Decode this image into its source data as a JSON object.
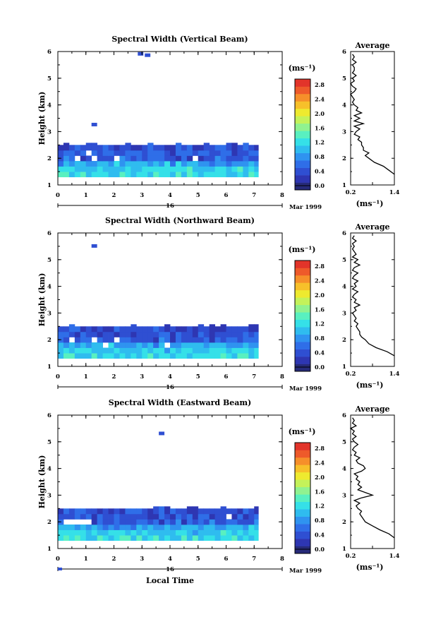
{
  "chart_data": [
    {
      "type": "heatmap",
      "title": "Spectral Width (Vertical Beam)",
      "ylabel": "Height (km)",
      "xticks": [
        "0",
        "1",
        "2",
        "3",
        "4",
        "5",
        "6",
        "7",
        "8"
      ],
      "yticks": [
        "1",
        "2",
        "3",
        "4",
        "5",
        "6"
      ],
      "xlim": [
        0,
        8
      ],
      "ylim": [
        1,
        6
      ],
      "date_day": "16",
      "date_label": "Mar 1999",
      "colorbar": {
        "unit": "(ms⁻¹)",
        "ticks": [
          "0.0",
          "0.4",
          "0.8",
          "1.2",
          "1.6",
          "2.0",
          "2.4",
          "2.8"
        ],
        "range": [
          0,
          3.0
        ]
      },
      "grid": {
        "x_end": 7.15,
        "heights_km": [
          1.4,
          1.6,
          1.8,
          2.0,
          2.2,
          2.4
        ],
        "dominant_width": [
          1.3,
          1.2,
          1.0,
          0.6,
          0.6,
          0.5
        ]
      },
      "gaps": [
        [
          0.6,
          2.0
        ],
        [
          1.0,
          2.2
        ],
        [
          1.2,
          2.0
        ],
        [
          1.7,
          2.0
        ],
        [
          2.0,
          2.0
        ],
        [
          4.5,
          2.0
        ],
        [
          4.8,
          2.0
        ]
      ],
      "isolated": [
        [
          2.85,
          5.9,
          0.6
        ],
        [
          3.1,
          5.85,
          0.6
        ],
        [
          1.2,
          3.25,
          0.6
        ]
      ],
      "average": {
        "title": "Average",
        "xticks": [
          "0.2",
          "1.4"
        ],
        "xlim": [
          0.2,
          1.4
        ],
        "unit": "(ms⁻¹)",
        "heights": [
          1.4,
          1.55,
          1.7,
          1.85,
          2.0,
          2.1,
          2.2,
          2.3,
          2.4,
          2.5,
          2.6,
          2.7,
          2.8,
          2.9,
          3.0,
          3.1,
          3.2,
          3.3,
          3.4,
          3.5,
          3.6,
          3.7,
          3.8,
          3.9,
          4.0,
          4.1,
          4.2,
          4.3,
          4.4,
          4.5,
          4.6,
          4.7,
          4.8,
          4.9,
          5.0,
          5.1,
          5.2,
          5.3,
          5.4,
          5.5,
          5.6,
          5.7,
          5.8,
          5.9
        ],
        "values": [
          1.4,
          1.25,
          1.1,
          0.85,
          0.7,
          0.6,
          0.7,
          0.55,
          0.55,
          0.5,
          0.5,
          0.4,
          0.45,
          0.3,
          0.35,
          0.45,
          0.3,
          0.55,
          0.3,
          0.45,
          0.3,
          0.5,
          0.35,
          0.4,
          0.3,
          0.25,
          0.3,
          0.25,
          0.2,
          0.3,
          0.35,
          0.25,
          0.2,
          0.3,
          0.25,
          0.35,
          0.25,
          0.3,
          0.3,
          0.25,
          0.35,
          0.25,
          0.3,
          0.25
        ]
      }
    },
    {
      "type": "heatmap",
      "title": "Spectral Width (Northward Beam)",
      "ylabel": "Height (km)",
      "xticks": [
        "0",
        "1",
        "2",
        "3",
        "4",
        "5",
        "6",
        "7",
        "8"
      ],
      "yticks": [
        "1",
        "2",
        "3",
        "4",
        "5",
        "6"
      ],
      "xlim": [
        0,
        8
      ],
      "ylim": [
        1,
        6
      ],
      "date_day": "16",
      "date_label": "Mar 1999",
      "colorbar": {
        "unit": "(ms⁻¹)",
        "ticks": [
          "0.0",
          "0.4",
          "0.8",
          "1.2",
          "1.6",
          "2.0",
          "2.4",
          "2.8"
        ],
        "range": [
          0,
          3.0
        ]
      },
      "grid": {
        "x_end": 7.15,
        "heights_km": [
          1.4,
          1.6,
          1.8,
          2.0,
          2.2,
          2.4
        ],
        "dominant_width": [
          1.3,
          1.2,
          1.0,
          0.6,
          0.5,
          0.45
        ]
      },
      "gaps": [
        [
          0.4,
          2.0
        ],
        [
          1.2,
          2.0
        ],
        [
          2.0,
          2.0
        ],
        [
          3.8,
          1.8
        ],
        [
          4.5,
          2.2
        ],
        [
          6.1,
          1.8
        ],
        [
          6.1,
          2.0
        ],
        [
          1.6,
          1.8
        ]
      ],
      "isolated": [
        [
          1.2,
          5.5,
          0.6
        ]
      ],
      "average": {
        "title": "Average",
        "xticks": [
          "0.2",
          "1.4"
        ],
        "xlim": [
          0.2,
          1.4
        ],
        "unit": "(ms⁻¹)",
        "heights": [
          1.4,
          1.55,
          1.7,
          1.85,
          2.0,
          2.1,
          2.2,
          2.3,
          2.4,
          2.5,
          2.6,
          2.7,
          2.8,
          2.9,
          3.0,
          3.1,
          3.2,
          3.3,
          3.4,
          3.5,
          3.6,
          3.7,
          3.8,
          3.9,
          4.0,
          4.1,
          4.2,
          4.3,
          4.4,
          4.5,
          4.6,
          4.7,
          4.8,
          4.9,
          5.0,
          5.1,
          5.2,
          5.3,
          5.4,
          5.5,
          5.6,
          5.7,
          5.8,
          5.9
        ],
        "values": [
          1.4,
          1.2,
          0.9,
          0.7,
          0.6,
          0.5,
          0.45,
          0.45,
          0.4,
          0.35,
          0.4,
          0.3,
          0.35,
          0.3,
          0.25,
          0.35,
          0.3,
          0.45,
          0.3,
          0.35,
          0.25,
          0.3,
          0.4,
          0.25,
          0.35,
          0.3,
          0.4,
          0.25,
          0.3,
          0.4,
          0.25,
          0.3,
          0.45,
          0.3,
          0.4,
          0.25,
          0.35,
          0.3,
          0.25,
          0.3,
          0.25,
          0.35,
          0.25,
          0.3
        ]
      }
    },
    {
      "type": "heatmap",
      "title": "Spectral Width (Eastward Beam)",
      "ylabel": "Height (km)",
      "xlabel": "Local Time",
      "xticks": [
        "0",
        "1",
        "2",
        "3",
        "4",
        "5",
        "6",
        "7",
        "8"
      ],
      "yticks": [
        "1",
        "2",
        "3",
        "4",
        "5",
        "6"
      ],
      "xlim": [
        0,
        8
      ],
      "ylim": [
        1,
        6
      ],
      "date_day": "16",
      "date_label": "Mar 1999",
      "colorbar": {
        "unit": "(ms⁻¹)",
        "ticks": [
          "0.0",
          "0.4",
          "0.8",
          "1.2",
          "1.6",
          "2.0",
          "2.4",
          "2.8"
        ],
        "range": [
          0,
          3.0
        ]
      },
      "grid": {
        "x_end": 7.15,
        "heights_km": [
          1.4,
          1.6,
          1.8,
          2.0,
          2.2,
          2.4
        ],
        "dominant_width": [
          1.3,
          1.2,
          1.0,
          0.6,
          0.55,
          0.5
        ]
      },
      "gaps": [
        [
          0.2,
          2.0
        ],
        [
          0.4,
          2.0
        ],
        [
          0.6,
          2.0
        ],
        [
          0.8,
          2.0
        ],
        [
          1.0,
          2.0
        ],
        [
          6.0,
          2.2
        ]
      ],
      "isolated": [
        [
          3.6,
          5.3,
          0.6
        ]
      ],
      "average": {
        "title": "Average",
        "xticks": [
          "0.2",
          "1.4"
        ],
        "xlim": [
          0.2,
          1.4
        ],
        "unit": "(ms⁻¹)",
        "heights": [
          1.4,
          1.55,
          1.7,
          1.85,
          2.0,
          2.1,
          2.2,
          2.3,
          2.4,
          2.5,
          2.6,
          2.7,
          2.8,
          2.9,
          3.0,
          3.1,
          3.2,
          3.3,
          3.4,
          3.5,
          3.6,
          3.7,
          3.8,
          3.9,
          4.0,
          4.1,
          4.2,
          4.3,
          4.4,
          4.5,
          4.6,
          4.7,
          4.8,
          4.9,
          5.0,
          5.1,
          5.2,
          5.3,
          5.4,
          5.5,
          5.6,
          5.7,
          5.8,
          5.9
        ],
        "values": [
          1.4,
          1.25,
          1.0,
          0.8,
          0.6,
          0.55,
          0.5,
          0.45,
          0.5,
          0.4,
          0.35,
          0.45,
          0.3,
          0.5,
          0.8,
          0.6,
          0.4,
          0.5,
          0.4,
          0.45,
          0.35,
          0.4,
          0.3,
          0.5,
          0.6,
          0.55,
          0.4,
          0.35,
          0.45,
          0.3,
          0.35,
          0.25,
          0.3,
          0.4,
          0.3,
          0.25,
          0.35,
          0.25,
          0.3,
          0.2,
          0.35,
          0.25,
          0.3,
          0.25
        ]
      }
    }
  ]
}
